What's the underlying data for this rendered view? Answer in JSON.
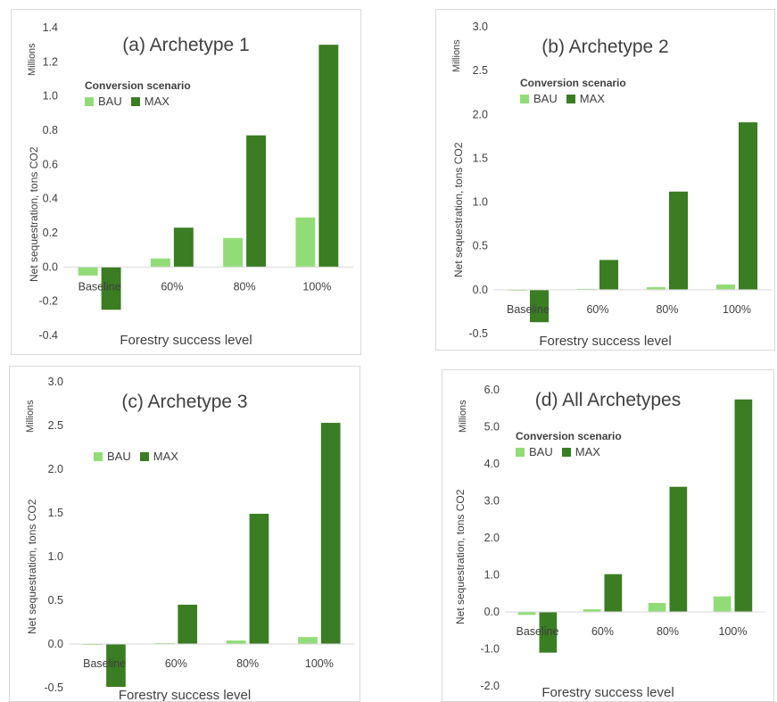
{
  "colors": {
    "BAU": "#92dc78",
    "MAX": "#3a7d22"
  },
  "chart_data": [
    {
      "type": "bar",
      "title": "(a) Archetype 1",
      "units_label": "Millions",
      "ylabel": "Net sequestration, tons CO2",
      "xlabel": "Forestry success level",
      "legend_title": "Conversion scenario",
      "categories": [
        "Baseline",
        "60%",
        "80%",
        "100%"
      ],
      "ylim": [
        -0.4,
        1.4
      ],
      "yticks": [
        -0.4,
        -0.2,
        0.0,
        0.2,
        0.4,
        0.6,
        0.8,
        1.0,
        1.2,
        1.4
      ],
      "ytick_labels": [
        "-0.4",
        "-0.2",
        "0.0",
        "0.2",
        "0.4",
        "0.6",
        "0.8",
        "1.0",
        "1.2",
        "1.4"
      ],
      "series": [
        {
          "name": "BAU",
          "values": [
            -0.05,
            0.05,
            0.17,
            0.29
          ]
        },
        {
          "name": "MAX",
          "values": [
            -0.25,
            0.23,
            0.77,
            1.3
          ]
        }
      ]
    },
    {
      "type": "bar",
      "title": "(b) Archetype 2",
      "units_label": "Millions",
      "ylabel": "Net sequestration, tons CO2",
      "xlabel": "Forestry success level",
      "legend_title": "Conversion scenario",
      "categories": [
        "Baseline",
        "60%",
        "80%",
        "100%"
      ],
      "ylim": [
        -0.5,
        3.0
      ],
      "yticks": [
        -0.5,
        0.0,
        0.5,
        1.0,
        1.5,
        2.0,
        2.5,
        3.0
      ],
      "ytick_labels": [
        "-0.5",
        "0.0",
        "0.5",
        "1.0",
        "1.5",
        "2.0",
        "2.5",
        "3.0"
      ],
      "series": [
        {
          "name": "BAU",
          "values": [
            -0.01,
            0.01,
            0.03,
            0.06
          ]
        },
        {
          "name": "MAX",
          "values": [
            -0.37,
            0.34,
            1.12,
            1.91
          ]
        }
      ]
    },
    {
      "type": "bar",
      "title": "(c) Archetype 3",
      "units_label": "Millions",
      "ylabel": "Net sequestration, tons CO2",
      "xlabel": "Forestry success level",
      "legend_title": "",
      "categories": [
        "Baseline",
        "60%",
        "80%",
        "100%"
      ],
      "ylim": [
        -0.5,
        3.0
      ],
      "yticks": [
        -0.5,
        0.0,
        0.5,
        1.0,
        1.5,
        2.0,
        2.5,
        3.0
      ],
      "ytick_labels": [
        "-0.5",
        "0.0",
        "0.5",
        "1.0",
        "1.5",
        "2.0",
        "2.5",
        "3.0"
      ],
      "series": [
        {
          "name": "BAU",
          "values": [
            -0.01,
            0.01,
            0.04,
            0.08
          ]
        },
        {
          "name": "MAX",
          "values": [
            -0.49,
            0.45,
            1.49,
            2.53
          ]
        }
      ]
    },
    {
      "type": "bar",
      "title": "(d) All Archetypes",
      "units_label": "Millions",
      "ylabel": "Net sequestration, tons CO2",
      "xlabel": "Forestry success level",
      "legend_title": "Conversion scenario",
      "categories": [
        "Baseline",
        "60%",
        "80%",
        "100%"
      ],
      "ylim": [
        -2.0,
        6.0
      ],
      "yticks": [
        -2.0,
        -1.0,
        0.0,
        1.0,
        2.0,
        3.0,
        4.0,
        5.0,
        6.0
      ],
      "ytick_labels": [
        "-2.0",
        "-1.0",
        "0.0",
        "1.0",
        "2.0",
        "3.0",
        "4.0",
        "5.0",
        "6.0"
      ],
      "series": [
        {
          "name": "BAU",
          "values": [
            -0.08,
            0.07,
            0.24,
            0.42
          ]
        },
        {
          "name": "MAX",
          "values": [
            -1.1,
            1.02,
            3.38,
            5.74
          ]
        }
      ]
    }
  ]
}
